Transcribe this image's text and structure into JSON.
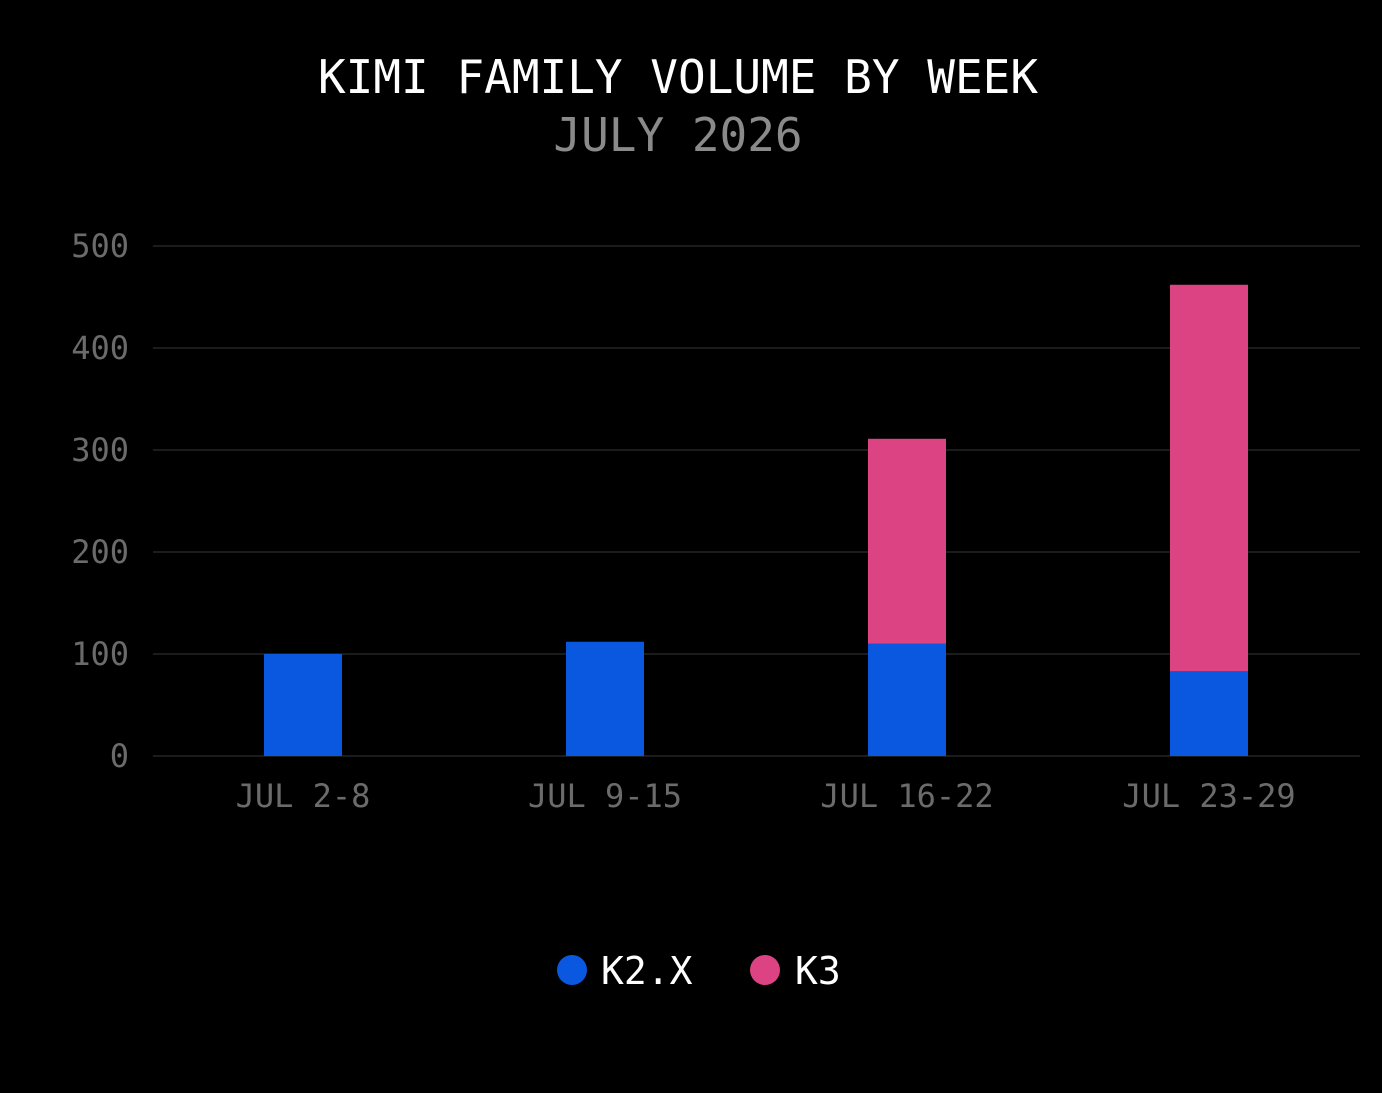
{
  "chart_data": {
    "type": "bar",
    "stacked": true,
    "title": "KIMI FAMILY VOLUME BY WEEK",
    "subtitle": "JULY 2026",
    "xlabel": "",
    "ylabel": "",
    "categories": [
      "JUL 2-8",
      "JUL 9-15",
      "JUL 16-22",
      "JUL 23-29"
    ],
    "series": [
      {
        "name": "K2.X",
        "color": "#0a57e0",
        "values": [
          100,
          112,
          110,
          83
        ]
      },
      {
        "name": "K3",
        "color": "#dc4382",
        "values": [
          0,
          0,
          201,
          379
        ]
      }
    ],
    "ylim": [
      0,
      500
    ],
    "yticks": [
      0,
      100,
      200,
      300,
      400,
      500
    ],
    "grid": true,
    "legend": "bottom-center"
  }
}
